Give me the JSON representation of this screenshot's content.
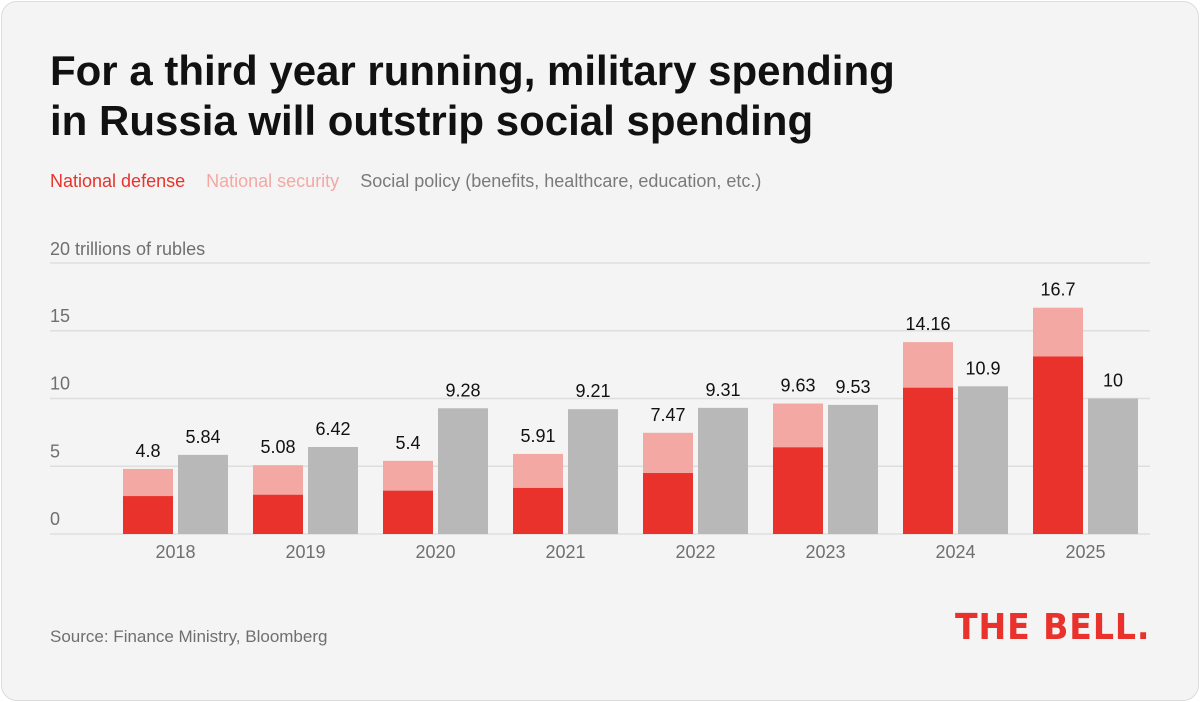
{
  "title_lines": [
    "For a third year running, military spending",
    "in Russia will outstrip social spending"
  ],
  "source": "Source: Finance Ministry, Bloomberg",
  "logo_text": "THE BELL.",
  "colors": {
    "national_defense": "#e8322b",
    "national_security": "#f4a8a4",
    "social_policy": "#b8b8b8",
    "grid": "#dedede",
    "axis_text": "#6f6f6f",
    "label_text": "#111111"
  },
  "chart_data": {
    "type": "bar",
    "stacked_group": [
      "National defense",
      "National security"
    ],
    "categories": [
      "2018",
      "2019",
      "2020",
      "2021",
      "2022",
      "2023",
      "2024",
      "2025"
    ],
    "series": [
      {
        "name": "National defense",
        "values": [
          2.8,
          2.9,
          3.2,
          3.4,
          4.5,
          6.4,
          10.8,
          13.1
        ]
      },
      {
        "name": "National security",
        "values": [
          2.0,
          2.18,
          2.2,
          2.51,
          2.97,
          3.23,
          3.36,
          3.6
        ]
      },
      {
        "name": "Social policy (benefits, healthcare, education, etc.)",
        "values": [
          5.84,
          6.42,
          9.28,
          9.21,
          9.31,
          9.53,
          10.9,
          10
        ]
      }
    ],
    "military_total_labels": [
      "4.8",
      "5.08",
      "5.4",
      "5.91",
      "7.47",
      "9.63",
      "14.16",
      "16.7"
    ],
    "social_labels": [
      "5.84",
      "6.42",
      "9.28",
      "9.21",
      "9.31",
      "9.53",
      "10.9",
      "10"
    ],
    "y_ticks": [
      "0",
      "5",
      "10",
      "15",
      "20 trillions of rubles"
    ],
    "y_tick_values": [
      0,
      5,
      10,
      15,
      20
    ],
    "ylim": [
      0,
      20
    ],
    "grid": true,
    "legend_position": "top-left"
  }
}
